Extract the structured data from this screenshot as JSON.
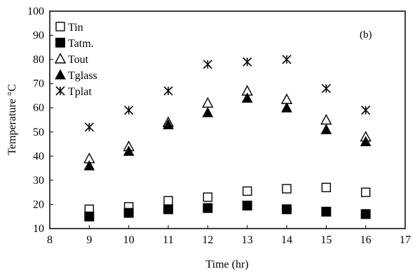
{
  "chart_data": {
    "type": "scatter",
    "panel_label": "(b)",
    "xlabel": "Time (hr)",
    "ylabel": "Temperature  °C",
    "xlim": [
      8,
      17
    ],
    "ylim": [
      10,
      100
    ],
    "xticks": [
      8,
      9,
      10,
      11,
      12,
      13,
      14,
      15,
      16,
      17
    ],
    "yticks": [
      10,
      20,
      30,
      40,
      50,
      60,
      70,
      80,
      90,
      100
    ],
    "grid": false,
    "legend_position": "top-left",
    "x": [
      9,
      10,
      11,
      12,
      13,
      14,
      15,
      16
    ],
    "series": [
      {
        "name": "Tin",
        "marker": "open-square",
        "values": [
          18,
          19,
          21.5,
          23,
          25.5,
          26.5,
          27,
          25
        ]
      },
      {
        "name": "Tatm.",
        "marker": "filled-square",
        "values": [
          15,
          16.5,
          18,
          18.5,
          19.5,
          18,
          17,
          16
        ]
      },
      {
        "name": "Tout",
        "marker": "open-triangle",
        "values": [
          39,
          44,
          54,
          62,
          67,
          63.5,
          55,
          48
        ]
      },
      {
        "name": "Tglass",
        "marker": "filled-triangle",
        "values": [
          36,
          42,
          53,
          58,
          64,
          60,
          51,
          46
        ]
      },
      {
        "name": "Tplat",
        "marker": "asterisk",
        "values": [
          52,
          59,
          67,
          78,
          79,
          80,
          68,
          59
        ]
      }
    ],
    "colors": {
      "marker": "#000000",
      "axis": "#000000",
      "background": "#ffffff"
    }
  }
}
